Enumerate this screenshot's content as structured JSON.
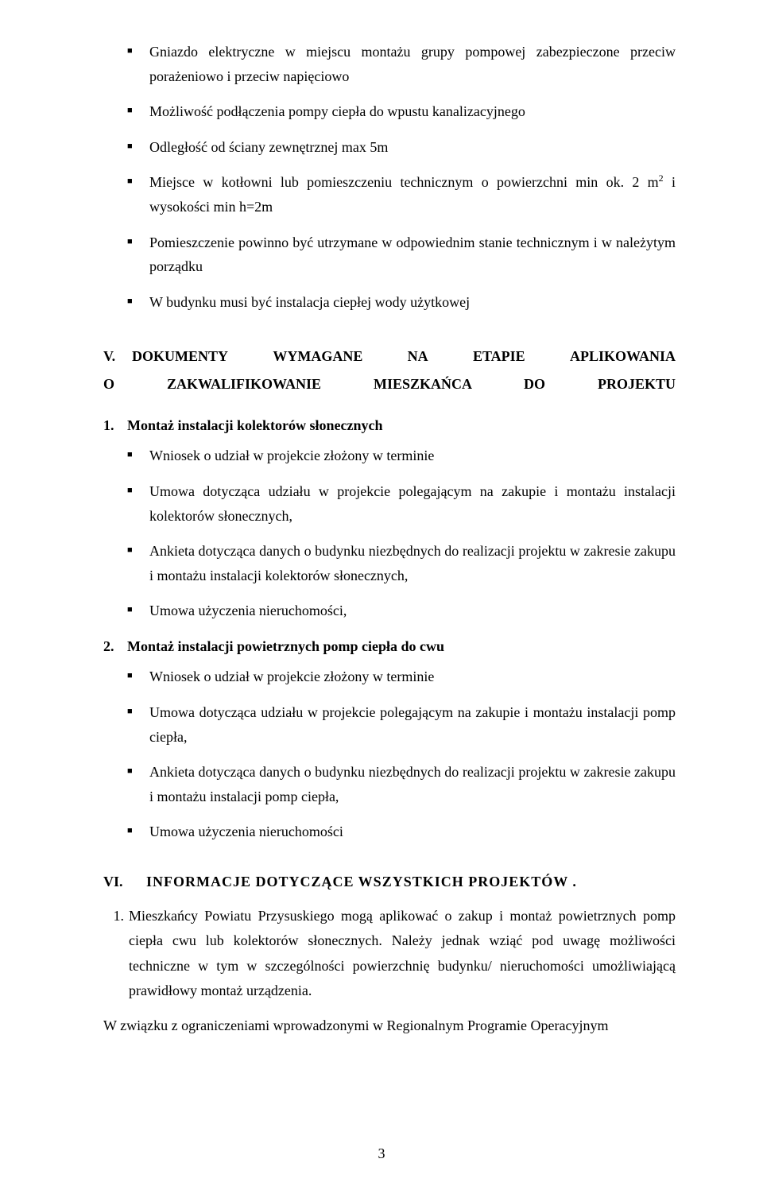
{
  "top_bullets": [
    "Gniazdo elektryczne w miejscu montażu grupy pompowej zabezpieczone przeciw porażeniowo i przeciw napięciowo",
    "Możliwość podłączenia pompy ciepła do wpustu kanalizacyjnego",
    "Odległość od ściany zewnętrznej max 5m",
    "Miejsce w kotłowni lub pomieszczeniu technicznym o powierzchni min ok. 2 m² i wysokości min h=2m",
    "Pomieszczenie powinno być utrzymane w odpowiednim stanie technicznym i w należytym porządku",
    "W budynku musi być instalacja ciepłej wody użytkowej"
  ],
  "section_v": {
    "roman": "V.",
    "title": "DOKUMENTY WYMAGANE NA ETAPIE APLIKOWANIA O ZAKWALIFIKOWANIE MIESZKAŃCA DO PROJEKTU"
  },
  "list1": {
    "num": "1.",
    "title": "Montaż instalacji kolektorów słonecznych",
    "bullets": [
      "Wniosek o udział w projekcie złożony w  terminie",
      "Umowa dotycząca udziału w projekcie polegającym na zakupie i montażu instalacji kolektorów słonecznych,",
      "Ankieta dotycząca danych o budynku niezbędnych do realizacji projektu w zakresie zakupu i montażu instalacji kolektorów słonecznych,",
      "Umowa użyczenia nieruchomości,"
    ]
  },
  "list2": {
    "num": "2.",
    "title": "Montaż instalacji powietrznych pomp ciepła do cwu",
    "bullets": [
      "Wniosek o udział w projekcie złożony w terminie",
      "Umowa dotycząca udziału w projekcie polegającym na zakupie i montażu instalacji pomp ciepła,",
      "Ankieta dotycząca danych o budynku niezbędnych do realizacji projektu w zakresie zakupu i montażu instalacji pomp ciepła,",
      "Umowa użyczenia nieruchomości"
    ]
  },
  "section_vi": {
    "roman": "VI.",
    "title": "INFORMACJE  DOTYCZĄCE  WSZYSTKICH  PROJEKTÓW ."
  },
  "vi_item1": {
    "num": "1.",
    "text": "Mieszkańcy Powiatu Przysuskiego mogą aplikować o zakup i montaż powietrznych pomp ciepła cwu lub kolektorów słonecznych. Należy jednak wziąć pod uwagę możliwości techniczne w tym w szczególności powierzchnię budynku/ nieruchomości umożliwiającą prawidłowy montaż urządzenia."
  },
  "closing": "W związku z ograniczeniami wprowadzonymi w Regionalnym Programie Operacyjnym",
  "page_number": "3"
}
